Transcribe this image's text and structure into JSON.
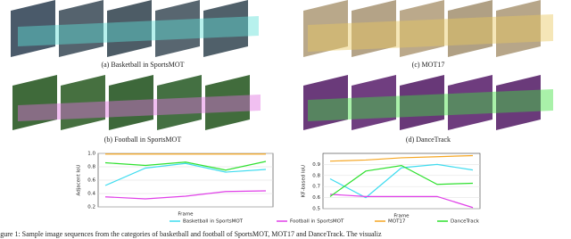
{
  "panels": [
    {
      "caption": "(a) Basketball in SportsMOT"
    },
    {
      "caption": "(c) MOT17"
    },
    {
      "caption": "(b) Football in SportsMOT"
    },
    {
      "caption": "(d) DanceTrack"
    }
  ],
  "chart_data": [
    {
      "type": "line",
      "ylabel": "Adjacent IoU",
      "xlabel": "Frame",
      "ylim": [
        0.2,
        1.0
      ],
      "yticks": [
        0.2,
        0.4,
        0.6,
        0.8,
        {
          "value": 1.0,
          "label": "1.0"
        }
      ],
      "series": [
        {
          "name": "Basketball in SportsMOT",
          "color": "#3fdcef",
          "values": [
            0.52,
            0.78,
            0.85,
            0.72,
            0.76
          ]
        },
        {
          "name": "Football in SportsMOT",
          "color": "#e040e8",
          "values": [
            0.35,
            0.32,
            0.36,
            0.43,
            0.44
          ]
        },
        {
          "name": "MOT17",
          "color": "#f5a623",
          "values": [
            0.99,
            0.99,
            0.99,
            0.99,
            0.99
          ]
        },
        {
          "name": "DanceTrack",
          "color": "#2ee02e",
          "values": [
            0.86,
            0.82,
            0.87,
            0.75,
            0.88
          ]
        }
      ]
    },
    {
      "type": "line",
      "ylabel": "KF-based IoU",
      "xlabel": "Frame",
      "ylim": [
        0.5,
        1.0
      ],
      "yticks": [
        0.5,
        0.6,
        0.7,
        0.8,
        0.9
      ],
      "series": [
        {
          "color": "#3fdcef",
          "values": [
            0.77,
            0.6,
            0.87,
            0.9,
            0.85
          ]
        },
        {
          "color": "#e040e8",
          "values": [
            0.63,
            0.61,
            0.61,
            0.61,
            0.51
          ]
        },
        {
          "color": "#f5a623",
          "values": [
            0.93,
            0.94,
            0.96,
            0.97,
            0.98
          ]
        },
        {
          "color": "#2ee02e",
          "values": [
            0.61,
            0.84,
            0.89,
            0.72,
            0.73
          ]
        }
      ]
    }
  ],
  "caption": "igure 1: Sample image sequences from the categories of basketball and football of SportsMOT, MOT17 and DanceTrack. The visualiz"
}
